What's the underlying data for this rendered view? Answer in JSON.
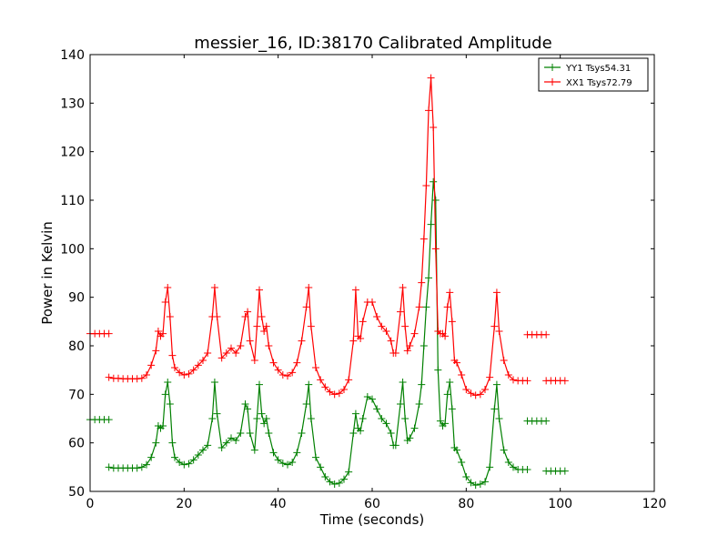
{
  "chart_data": {
    "type": "line",
    "title": "messier_16, ID:38170 Calibrated Amplitude",
    "xlabel": "Time (seconds)",
    "ylabel": "Power in Kelvin",
    "xlim": [
      0,
      120
    ],
    "ylim": [
      50,
      140
    ],
    "xticks": [
      "0",
      "20",
      "40",
      "60",
      "80",
      "100",
      "120"
    ],
    "yticks": [
      "50",
      "60",
      "70",
      "80",
      "90",
      "100",
      "110",
      "120",
      "130",
      "140"
    ],
    "grid": false,
    "legend_position": "top-right",
    "series": [
      {
        "name": "YY1 Tsys54.31",
        "color": "#008000",
        "marker": "plus",
        "segments": [
          [
            [
              0,
              64.8
            ],
            [
              1,
              64.8
            ],
            [
              2,
              64.8
            ],
            [
              3,
              64.8
            ],
            [
              4,
              64.8
            ]
          ],
          [
            [
              4,
              55
            ],
            [
              5,
              54.8
            ],
            [
              6,
              54.8
            ],
            [
              7,
              54.8
            ],
            [
              8,
              54.8
            ],
            [
              9,
              54.8
            ],
            [
              10,
              54.8
            ],
            [
              11,
              55
            ],
            [
              12,
              55.5
            ],
            [
              13,
              57
            ],
            [
              14,
              60
            ],
            [
              14.5,
              63.5
            ],
            [
              15,
              63
            ],
            [
              15.5,
              63.5
            ],
            [
              16,
              70
            ],
            [
              16.5,
              72.5
            ],
            [
              17,
              68
            ],
            [
              17.5,
              60
            ],
            [
              18,
              57
            ],
            [
              19,
              56
            ],
            [
              20,
              55.5
            ],
            [
              21,
              55.7
            ],
            [
              22,
              56.5
            ],
            [
              23,
              57.5
            ],
            [
              24,
              58.5
            ],
            [
              25,
              59.5
            ],
            [
              26,
              65
            ],
            [
              26.5,
              72.5
            ],
            [
              27,
              66
            ],
            [
              28,
              59
            ],
            [
              29,
              60
            ],
            [
              30,
              61
            ],
            [
              31,
              60.5
            ],
            [
              32,
              62
            ],
            [
              33,
              68
            ],
            [
              33.5,
              67
            ],
            [
              34,
              62
            ],
            [
              35,
              58.5
            ],
            [
              35.5,
              65
            ],
            [
              36,
              72
            ],
            [
              36.5,
              66
            ],
            [
              37,
              64
            ],
            [
              37.5,
              65
            ],
            [
              38,
              62
            ],
            [
              39,
              58
            ],
            [
              40,
              56.5
            ],
            [
              41,
              55.8
            ],
            [
              42,
              55.5
            ],
            [
              43,
              56
            ],
            [
              44,
              58
            ],
            [
              45,
              62
            ],
            [
              46,
              68
            ],
            [
              46.5,
              72
            ],
            [
              47,
              65
            ],
            [
              48,
              57
            ],
            [
              49,
              55
            ],
            [
              50,
              53
            ],
            [
              51,
              52
            ],
            [
              52,
              51.5
            ],
            [
              53,
              51.7
            ],
            [
              54,
              52.5
            ],
            [
              55,
              54
            ],
            [
              56,
              62
            ],
            [
              56.5,
              66
            ],
            [
              57,
              63
            ],
            [
              57.5,
              62.5
            ],
            [
              58,
              65
            ],
            [
              59,
              69.5
            ],
            [
              60,
              69
            ],
            [
              61,
              67
            ],
            [
              62,
              65
            ],
            [
              63,
              64
            ],
            [
              64,
              62
            ],
            [
              64.5,
              59.5
            ],
            [
              65,
              59.5
            ],
            [
              66,
              68
            ],
            [
              66.5,
              72.5
            ],
            [
              67,
              65
            ],
            [
              67.5,
              60.5
            ],
            [
              68,
              61
            ],
            [
              69,
              63
            ],
            [
              70,
              68
            ],
            [
              70.5,
              72
            ],
            [
              71,
              80
            ],
            [
              71.5,
              88
            ],
            [
              72,
              94
            ],
            [
              72.5,
              105
            ],
            [
              73,
              113.8
            ],
            [
              73.5,
              110
            ],
            [
              74,
              75
            ],
            [
              74.5,
              64.5
            ],
            [
              75,
              63.5
            ],
            [
              75.5,
              64
            ],
            [
              76,
              70
            ],
            [
              76.5,
              72.5
            ],
            [
              77,
              67
            ],
            [
              77.5,
              59
            ],
            [
              78,
              58.5
            ],
            [
              79,
              56
            ],
            [
              80,
              53
            ],
            [
              81,
              51.8
            ],
            [
              82,
              51.3
            ],
            [
              83,
              51.5
            ],
            [
              84,
              52
            ],
            [
              85,
              55
            ],
            [
              86,
              67
            ],
            [
              86.5,
              72
            ],
            [
              87,
              65
            ],
            [
              88,
              58.5
            ],
            [
              89,
              56
            ],
            [
              90,
              55
            ],
            [
              91,
              54.5
            ],
            [
              92,
              54.5
            ],
            [
              93,
              54.5
            ]
          ],
          [
            [
              93,
              64.5
            ],
            [
              94,
              64.5
            ],
            [
              95,
              64.5
            ],
            [
              96,
              64.5
            ],
            [
              97,
              64.5
            ]
          ],
          [
            [
              97,
              54.2
            ],
            [
              98,
              54.2
            ],
            [
              99,
              54.2
            ],
            [
              100,
              54.2
            ],
            [
              101,
              54.2
            ]
          ]
        ]
      },
      {
        "name": "XX1 Tsys72.79",
        "color": "#ff0000",
        "marker": "plus",
        "segments": [
          [
            [
              0,
              82.5
            ],
            [
              1,
              82.5
            ],
            [
              2,
              82.5
            ],
            [
              3,
              82.5
            ],
            [
              4,
              82.5
            ]
          ],
          [
            [
              4,
              73.5
            ],
            [
              5,
              73.3
            ],
            [
              6,
              73.3
            ],
            [
              7,
              73.2
            ],
            [
              8,
              73.2
            ],
            [
              9,
              73.2
            ],
            [
              10,
              73.2
            ],
            [
              11,
              73.3
            ],
            [
              12,
              74
            ],
            [
              13,
              76
            ],
            [
              14,
              79
            ],
            [
              14.5,
              83
            ],
            [
              15,
              82
            ],
            [
              15.5,
              82.5
            ],
            [
              16,
              89
            ],
            [
              16.5,
              92
            ],
            [
              17,
              86
            ],
            [
              17.5,
              78
            ],
            [
              18,
              75.5
            ],
            [
              19,
              74.5
            ],
            [
              20,
              74
            ],
            [
              21,
              74.2
            ],
            [
              22,
              75
            ],
            [
              23,
              76
            ],
            [
              24,
              77
            ],
            [
              25,
              78.5
            ],
            [
              26,
              86
            ],
            [
              26.5,
              92
            ],
            [
              27,
              86
            ],
            [
              28,
              77.5
            ],
            [
              29,
              78.5
            ],
            [
              30,
              79.5
            ],
            [
              31,
              78.5
            ],
            [
              32,
              80
            ],
            [
              33,
              86
            ],
            [
              33.5,
              87
            ],
            [
              34,
              81
            ],
            [
              35,
              77
            ],
            [
              35.5,
              84
            ],
            [
              36,
              91.5
            ],
            [
              36.5,
              86
            ],
            [
              37,
              83
            ],
            [
              37.5,
              84
            ],
            [
              38,
              80
            ],
            [
              39,
              76.5
            ],
            [
              40,
              75
            ],
            [
              41,
              74
            ],
            [
              42,
              73.8
            ],
            [
              43,
              74.5
            ],
            [
              44,
              76.5
            ],
            [
              45,
              81
            ],
            [
              46,
              88
            ],
            [
              46.5,
              92
            ],
            [
              47,
              84
            ],
            [
              48,
              75.5
            ],
            [
              49,
              73
            ],
            [
              50,
              71.5
            ],
            [
              51,
              70.5
            ],
            [
              52,
              70
            ],
            [
              53,
              70.2
            ],
            [
              54,
              71
            ],
            [
              55,
              73
            ],
            [
              56,
              81
            ],
            [
              56.5,
              91.5
            ],
            [
              57,
              82
            ],
            [
              57.5,
              81.5
            ],
            [
              58,
              85
            ],
            [
              59,
              89
            ],
            [
              60,
              89
            ],
            [
              61,
              86
            ],
            [
              62,
              84
            ],
            [
              63,
              83
            ],
            [
              64,
              81
            ],
            [
              64.5,
              78.5
            ],
            [
              65,
              78.5
            ],
            [
              66,
              87
            ],
            [
              66.5,
              92
            ],
            [
              67,
              84
            ],
            [
              67.5,
              79
            ],
            [
              68,
              80
            ],
            [
              69,
              82.5
            ],
            [
              70,
              88
            ],
            [
              70.5,
              93
            ],
            [
              71,
              102
            ],
            [
              71.5,
              113
            ],
            [
              72,
              128.5
            ],
            [
              72.5,
              135.2
            ],
            [
              73,
              125
            ],
            [
              73.5,
              100
            ],
            [
              74,
              83
            ],
            [
              74.5,
              82.5
            ],
            [
              75,
              82.5
            ],
            [
              75.5,
              82
            ],
            [
              76,
              88
            ],
            [
              76.5,
              91
            ],
            [
              77,
              85
            ],
            [
              77.5,
              77
            ],
            [
              78,
              76.5
            ],
            [
              79,
              74
            ],
            [
              80,
              71
            ],
            [
              81,
              70.2
            ],
            [
              82,
              69.8
            ],
            [
              83,
              70
            ],
            [
              84,
              71
            ],
            [
              85,
              73.5
            ],
            [
              86,
              84
            ],
            [
              86.5,
              91
            ],
            [
              87,
              83
            ],
            [
              88,
              77
            ],
            [
              89,
              74
            ],
            [
              90,
              73
            ],
            [
              91,
              72.8
            ],
            [
              92,
              72.8
            ],
            [
              93,
              72.8
            ]
          ],
          [
            [
              93,
              82.3
            ],
            [
              94,
              82.3
            ],
            [
              95,
              82.3
            ],
            [
              96,
              82.3
            ],
            [
              97,
              82.3
            ]
          ],
          [
            [
              97,
              72.8
            ],
            [
              98,
              72.8
            ],
            [
              99,
              72.8
            ],
            [
              100,
              72.8
            ],
            [
              101,
              72.8
            ]
          ]
        ]
      }
    ]
  }
}
